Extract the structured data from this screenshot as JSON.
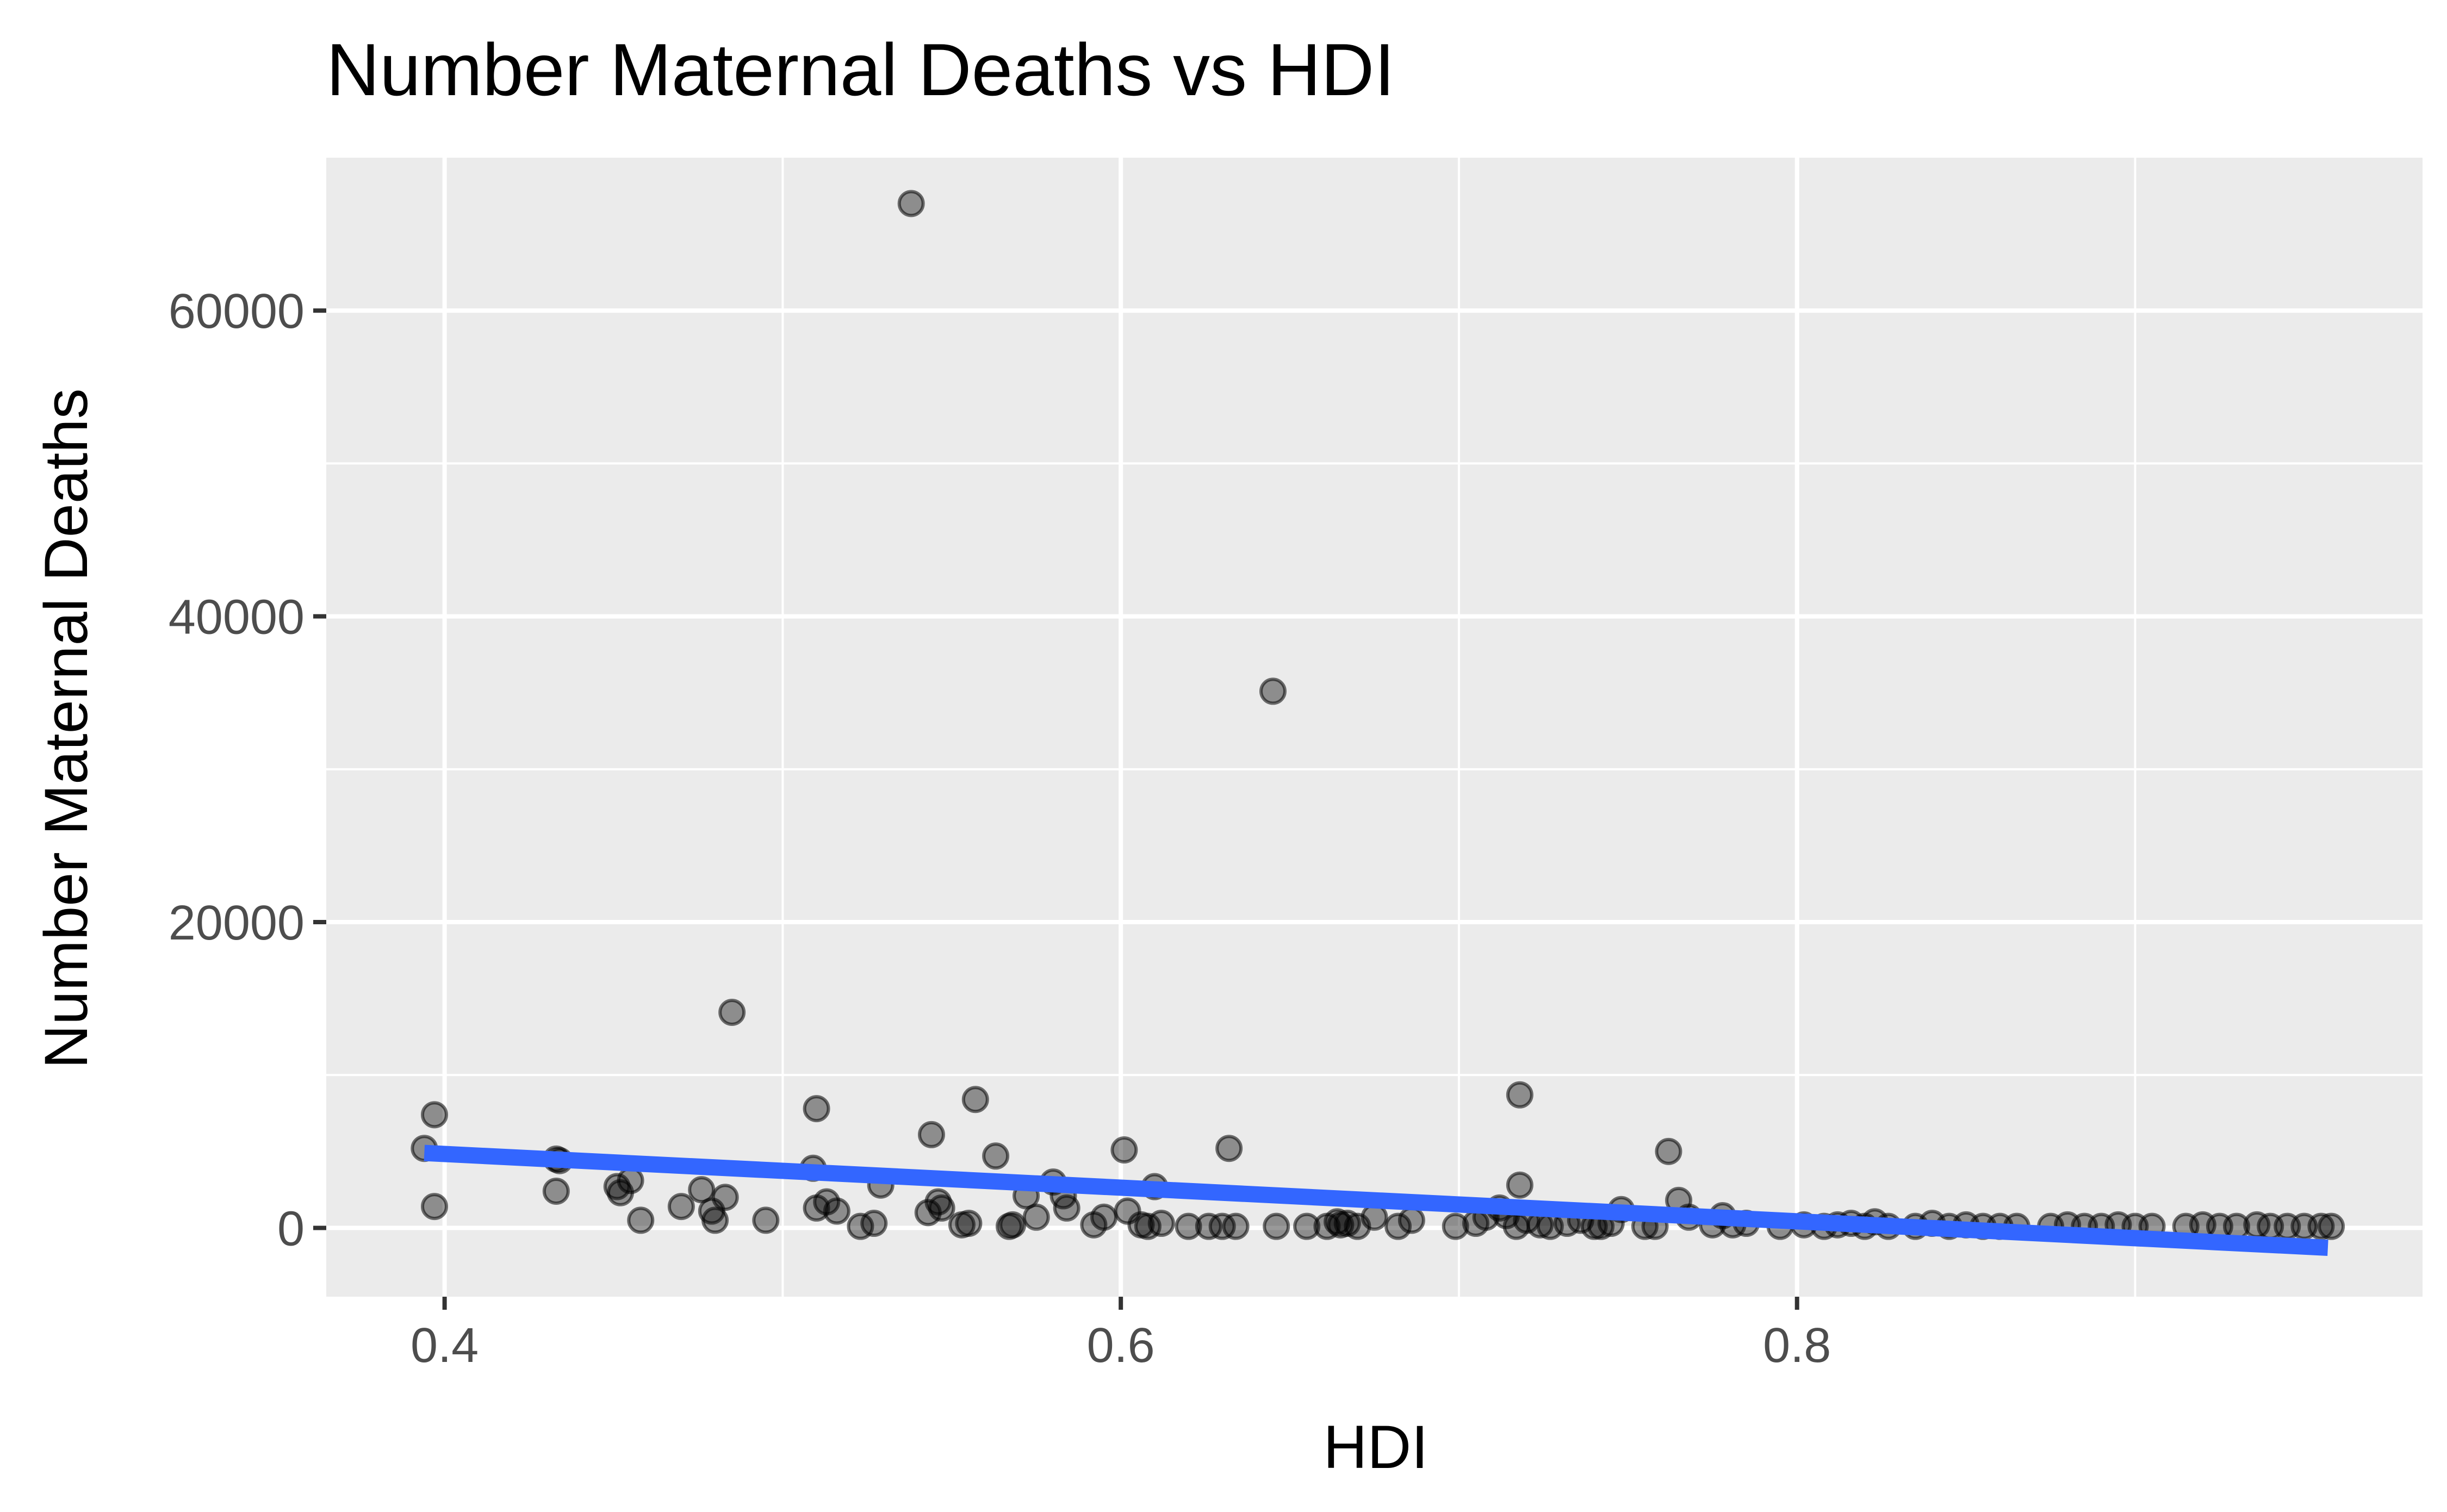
{
  "chart_data": {
    "type": "scatter",
    "title": "Number Maternal Deaths vs HDI",
    "xlabel": "HDI",
    "ylabel": "Number Maternal Deaths",
    "xlim": [
      0.365,
      0.985
    ],
    "ylim": [
      -4500,
      70000
    ],
    "xticks": [
      0.4,
      0.6,
      0.8
    ],
    "xtick_labels": [
      "0.4",
      "0.6",
      "0.8"
    ],
    "xticks_minor": [
      0.5,
      0.7,
      0.9
    ],
    "yticks": [
      0,
      20000,
      40000,
      60000
    ],
    "ytick_labels": [
      "0",
      "20000",
      "40000",
      "60000"
    ],
    "yticks_minor": [
      10000,
      30000,
      50000
    ],
    "grid": true,
    "background": "#ebebeb",
    "point_color": "#000000",
    "trend_color": "#3366ff",
    "trend": {
      "type": "linear",
      "x": [
        0.394,
        0.957
      ],
      "y": [
        4900,
        -1300
      ]
    },
    "series": [
      {
        "points": [
          [
            0.394,
            5200
          ],
          [
            0.397,
            7400
          ],
          [
            0.397,
            1400
          ],
          [
            0.433,
            4500
          ],
          [
            0.434,
            4400
          ],
          [
            0.433,
            2400
          ],
          [
            0.451,
            2700
          ],
          [
            0.452,
            2300
          ],
          [
            0.455,
            3100
          ],
          [
            0.458,
            500
          ],
          [
            0.47,
            1400
          ],
          [
            0.476,
            2500
          ],
          [
            0.479,
            1100
          ],
          [
            0.48,
            500
          ],
          [
            0.483,
            2000
          ],
          [
            0.485,
            14100
          ],
          [
            0.495,
            500
          ],
          [
            0.509,
            3900
          ],
          [
            0.51,
            7800
          ],
          [
            0.51,
            1300
          ],
          [
            0.513,
            1700
          ],
          [
            0.516,
            1100
          ],
          [
            0.523,
            100
          ],
          [
            0.527,
            300
          ],
          [
            0.529,
            2800
          ],
          [
            0.538,
            67000
          ],
          [
            0.543,
            1000
          ],
          [
            0.544,
            6100
          ],
          [
            0.546,
            1700
          ],
          [
            0.547,
            1300
          ],
          [
            0.553,
            200
          ],
          [
            0.555,
            300
          ],
          [
            0.557,
            8400
          ],
          [
            0.563,
            4700
          ],
          [
            0.567,
            100
          ],
          [
            0.568,
            200
          ],
          [
            0.572,
            2100
          ],
          [
            0.575,
            700
          ],
          [
            0.58,
            3000
          ],
          [
            0.583,
            2100
          ],
          [
            0.584,
            1300
          ],
          [
            0.592,
            200
          ],
          [
            0.595,
            700
          ],
          [
            0.601,
            5100
          ],
          [
            0.602,
            1100
          ],
          [
            0.606,
            200
          ],
          [
            0.608,
            100
          ],
          [
            0.61,
            2700
          ],
          [
            0.612,
            300
          ],
          [
            0.62,
            100
          ],
          [
            0.626,
            100
          ],
          [
            0.63,
            100
          ],
          [
            0.632,
            5200
          ],
          [
            0.634,
            100
          ],
          [
            0.645,
            35100
          ],
          [
            0.646,
            100
          ],
          [
            0.655,
            100
          ],
          [
            0.661,
            100
          ],
          [
            0.664,
            400
          ],
          [
            0.665,
            200
          ],
          [
            0.667,
            300
          ],
          [
            0.67,
            100
          ],
          [
            0.675,
            700
          ],
          [
            0.682,
            100
          ],
          [
            0.686,
            500
          ],
          [
            0.699,
            100
          ],
          [
            0.705,
            300
          ],
          [
            0.708,
            700
          ],
          [
            0.712,
            1300
          ],
          [
            0.714,
            800
          ],
          [
            0.717,
            100
          ],
          [
            0.718,
            8700
          ],
          [
            0.718,
            2800
          ],
          [
            0.72,
            500
          ],
          [
            0.724,
            200
          ],
          [
            0.727,
            100
          ],
          [
            0.732,
            300
          ],
          [
            0.736,
            500
          ],
          [
            0.74,
            100
          ],
          [
            0.742,
            100
          ],
          [
            0.745,
            300
          ],
          [
            0.748,
            1200
          ],
          [
            0.755,
            100
          ],
          [
            0.758,
            100
          ],
          [
            0.762,
            5000
          ],
          [
            0.765,
            1800
          ],
          [
            0.768,
            700
          ],
          [
            0.775,
            200
          ],
          [
            0.778,
            800
          ],
          [
            0.781,
            200
          ],
          [
            0.785,
            300
          ],
          [
            0.795,
            100
          ],
          [
            0.802,
            200
          ],
          [
            0.808,
            100
          ],
          [
            0.812,
            200
          ],
          [
            0.816,
            300
          ],
          [
            0.82,
            100
          ],
          [
            0.823,
            400
          ],
          [
            0.827,
            100
          ],
          [
            0.835,
            100
          ],
          [
            0.84,
            300
          ],
          [
            0.845,
            100
          ],
          [
            0.85,
            200
          ],
          [
            0.855,
            100
          ],
          [
            0.86,
            100
          ],
          [
            0.865,
            100
          ],
          [
            0.875,
            100
          ],
          [
            0.88,
            200
          ],
          [
            0.885,
            100
          ],
          [
            0.89,
            100
          ],
          [
            0.895,
            200
          ],
          [
            0.9,
            100
          ],
          [
            0.905,
            100
          ],
          [
            0.915,
            100
          ],
          [
            0.92,
            200
          ],
          [
            0.925,
            100
          ],
          [
            0.93,
            100
          ],
          [
            0.936,
            200
          ],
          [
            0.94,
            100
          ],
          [
            0.945,
            100
          ],
          [
            0.95,
            100
          ],
          [
            0.955,
            100
          ],
          [
            0.958,
            100
          ]
        ]
      }
    ]
  }
}
